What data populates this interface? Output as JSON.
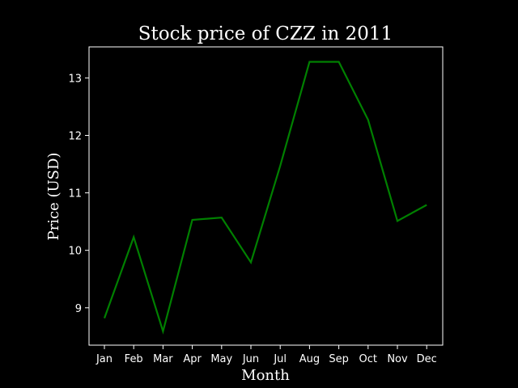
{
  "chart_data": {
    "type": "line",
    "title": "Stock price of CZZ in 2011",
    "xlabel": "Month",
    "ylabel": "Price (USD)",
    "categories": [
      "Jan",
      "Feb",
      "Mar",
      "Apr",
      "May",
      "Jun",
      "Jul",
      "Aug",
      "Sep",
      "Oct",
      "Nov",
      "Dec"
    ],
    "series": [
      {
        "values": [
          8.82,
          10.23,
          8.59,
          10.53,
          10.57,
          9.79,
          11.47,
          13.28,
          13.28,
          12.27,
          10.51,
          10.79
        ],
        "color": "#008000"
      }
    ],
    "yticks": [
      9,
      10,
      11,
      12,
      13
    ],
    "ylim": [
      8.35,
      13.54
    ],
    "grid": false,
    "legend": "none",
    "background": "#000000",
    "foreground": "#ffffff"
  }
}
